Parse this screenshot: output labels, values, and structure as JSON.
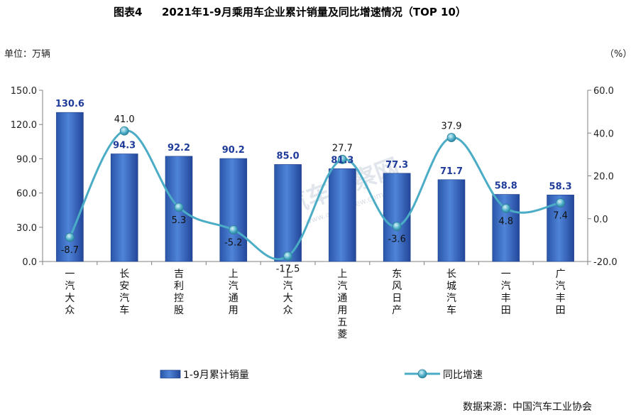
{
  "figure_label": "图表4",
  "unit_left": "单位：万辆",
  "unit_right": "（%）",
  "source": "数据来源：中国汽车工业协会",
  "watermark": "汽车观察网",
  "watermark_sub": "www.autoreview.com.cn",
  "colors": {
    "bar": "#3d6fc2",
    "bar_dark": "#23489a",
    "line": "#4bacc6",
    "bar_label": "#1f3b9a"
  },
  "chart_data": {
    "type": "bar",
    "title": "2021年1-9月乘用车企业累计销量及同比增速情况（TOP 10）",
    "categories": [
      "一汽大众",
      "长安汽车",
      "吉利控股",
      "上汽通用",
      "上汽大众",
      "上汽通用五菱",
      "东风日产",
      "长城汽车",
      "一汽丰田",
      "广汽丰田"
    ],
    "series": [
      {
        "name": "1-9月累计销量",
        "type": "bar",
        "axis": "left",
        "values": [
          130.6,
          94.3,
          92.2,
          90.2,
          85.0,
          81.3,
          77.3,
          71.7,
          58.8,
          58.3
        ]
      },
      {
        "name": "同比增速",
        "type": "line",
        "axis": "right",
        "values": [
          -8.7,
          41.0,
          5.3,
          -5.2,
          -17.5,
          27.7,
          -3.6,
          37.9,
          4.8,
          7.4
        ]
      }
    ],
    "y_left": {
      "min": 0,
      "max": 150,
      "ticks": [
        "0.0",
        "30.0",
        "60.0",
        "90.0",
        "120.0",
        "150.0"
      ]
    },
    "y_right": {
      "min": -20,
      "max": 60,
      "ticks": [
        "-20.0",
        "0.0",
        "20.0",
        "40.0",
        "60.0"
      ]
    },
    "legend_position": "bottom",
    "grid": false
  }
}
